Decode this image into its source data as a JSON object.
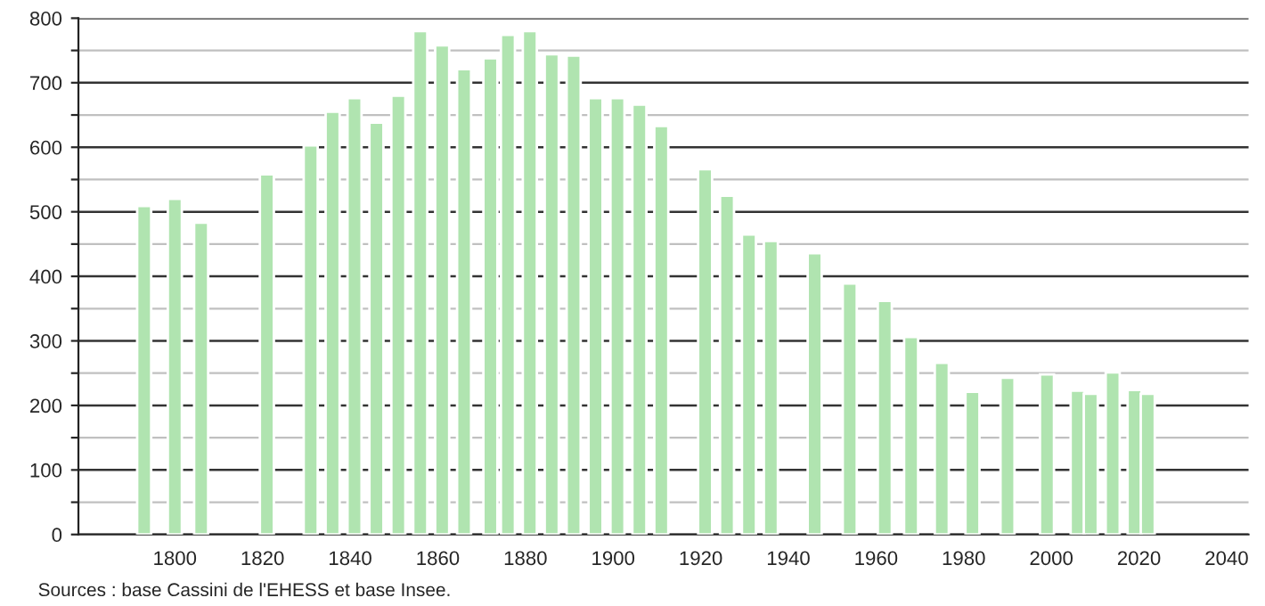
{
  "chart_data": {
    "type": "bar",
    "color": "#b0e4b0",
    "x": [
      1793,
      1800,
      1806,
      1821,
      1831,
      1836,
      1841,
      1846,
      1851,
      1856,
      1861,
      1866,
      1872,
      1876,
      1881,
      1886,
      1891,
      1896,
      1901,
      1906,
      1911,
      1921,
      1926,
      1931,
      1936,
      1946,
      1954,
      1962,
      1968,
      1975,
      1982,
      1990,
      1999,
      2006,
      2009,
      2014,
      2019,
      2022
    ],
    "values": [
      509,
      520,
      483,
      558,
      603,
      655,
      676,
      638,
      680,
      780,
      758,
      721,
      738,
      774,
      780,
      744,
      742,
      676,
      676,
      666,
      633,
      566,
      525,
      465,
      455,
      436,
      389,
      362,
      306,
      266,
      221,
      243,
      248,
      223,
      218,
      251,
      224,
      218
    ],
    "xlim": [
      1778,
      2045
    ],
    "xticks": [
      1800,
      1820,
      1840,
      1860,
      1880,
      1900,
      1920,
      1940,
      1960,
      1980,
      2000,
      2020,
      2040
    ],
    "ylim": [
      0,
      800
    ],
    "yticks": [
      0,
      {
        "value": 50,
        "label": null
      },
      100,
      {
        "value": 150,
        "label": null
      },
      200,
      {
        "value": 250,
        "label": null
      },
      300,
      {
        "value": 350,
        "label": null
      },
      400,
      {
        "value": 450,
        "label": null
      },
      500,
      {
        "value": 550,
        "label": null
      },
      600,
      {
        "value": 650,
        "label": null
      },
      700,
      {
        "value": 750,
        "label": null
      },
      800
    ],
    "grid": "y",
    "annotations": [
      "Sources : base Cassini de l'EHESS et base Insee."
    ]
  }
}
